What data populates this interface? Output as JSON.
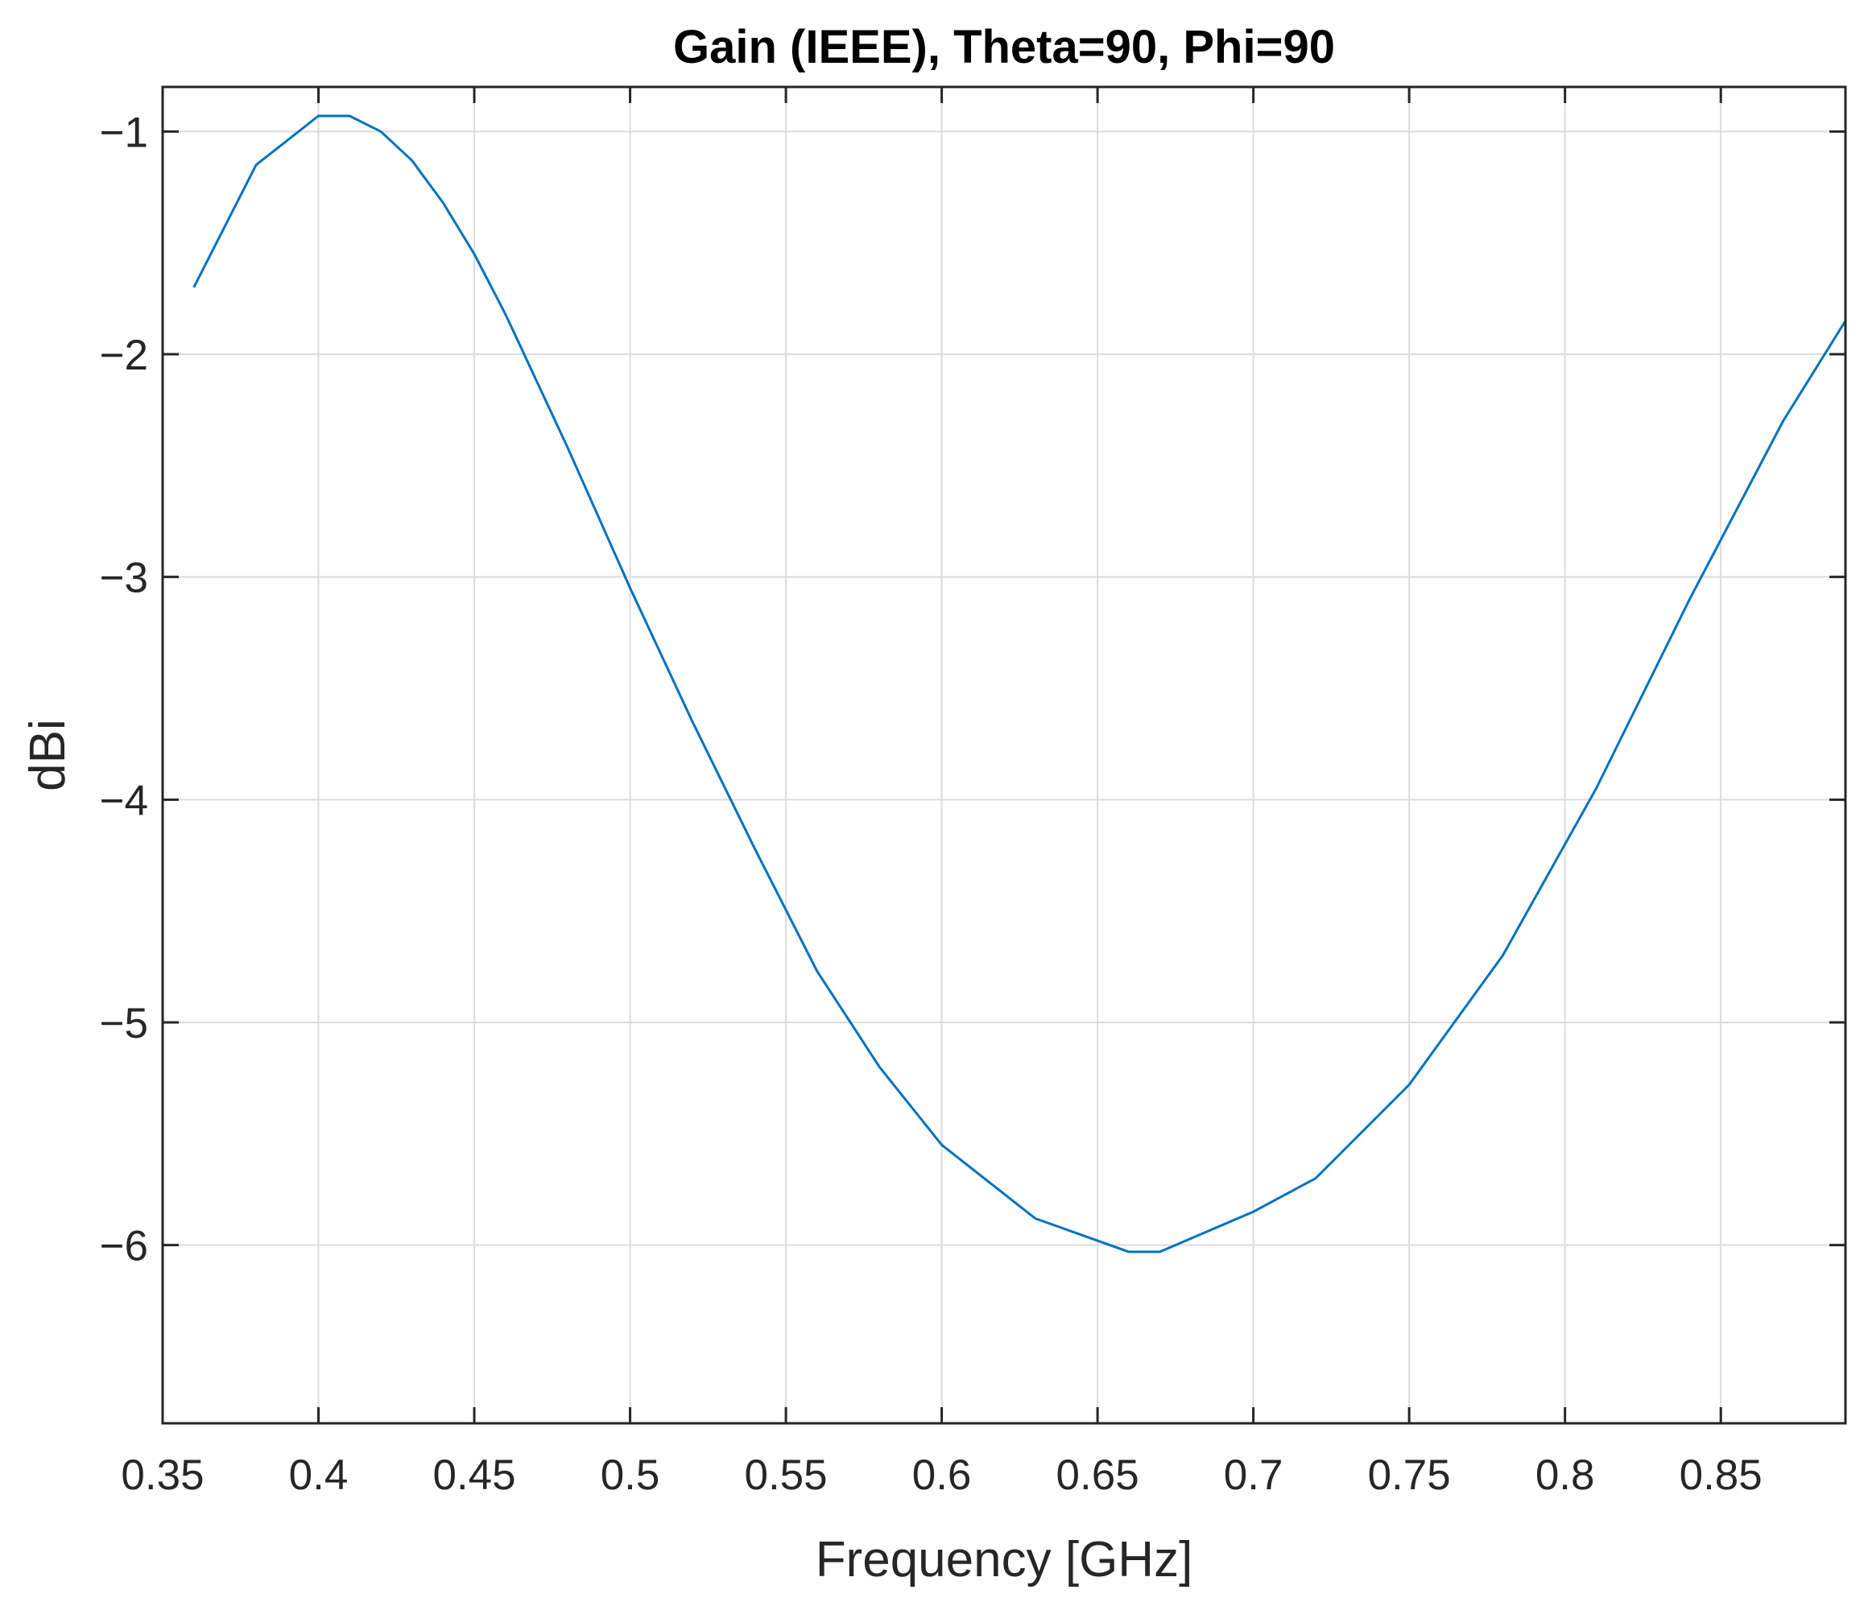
{
  "chart_data": {
    "type": "line",
    "title": "Gain (IEEE), Theta=90, Phi=90",
    "xlabel": "Frequency [GHz]",
    "ylabel": "dBi",
    "xlim": [
      0.35,
      0.89
    ],
    "ylim": [
      -6.8,
      -0.8
    ],
    "grid": true,
    "xticks": [
      0.35,
      0.4,
      0.45,
      0.5,
      0.55,
      0.6,
      0.65,
      0.7,
      0.75,
      0.8,
      0.85
    ],
    "xtick_labels": [
      "0.35",
      "0.4",
      "0.45",
      "0.5",
      "0.55",
      "0.6",
      "0.65",
      "0.7",
      "0.75",
      "0.8",
      "0.85"
    ],
    "yticks": [
      -6,
      -5,
      -4,
      -3,
      -2,
      -1
    ],
    "ytick_labels": [
      "−6",
      "−5",
      "−4",
      "−3",
      "−2",
      "−1"
    ],
    "series": [
      {
        "color": "#0072BD",
        "x": [
          0.36,
          0.38,
          0.4,
          0.41,
          0.42,
          0.43,
          0.44,
          0.45,
          0.46,
          0.48,
          0.5,
          0.52,
          0.54,
          0.56,
          0.58,
          0.6,
          0.63,
          0.66,
          0.67,
          0.7,
          0.72,
          0.75,
          0.78,
          0.81,
          0.84,
          0.87,
          0.89
        ],
        "y": [
          -1.7,
          -1.15,
          -0.93,
          -0.93,
          -1.0,
          -1.13,
          -1.32,
          -1.55,
          -1.82,
          -2.42,
          -3.05,
          -3.65,
          -4.22,
          -4.77,
          -5.2,
          -5.55,
          -5.88,
          -6.03,
          -6.03,
          -5.85,
          -5.7,
          -5.28,
          -4.7,
          -3.95,
          -3.1,
          -2.3,
          -1.85
        ]
      }
    ]
  }
}
